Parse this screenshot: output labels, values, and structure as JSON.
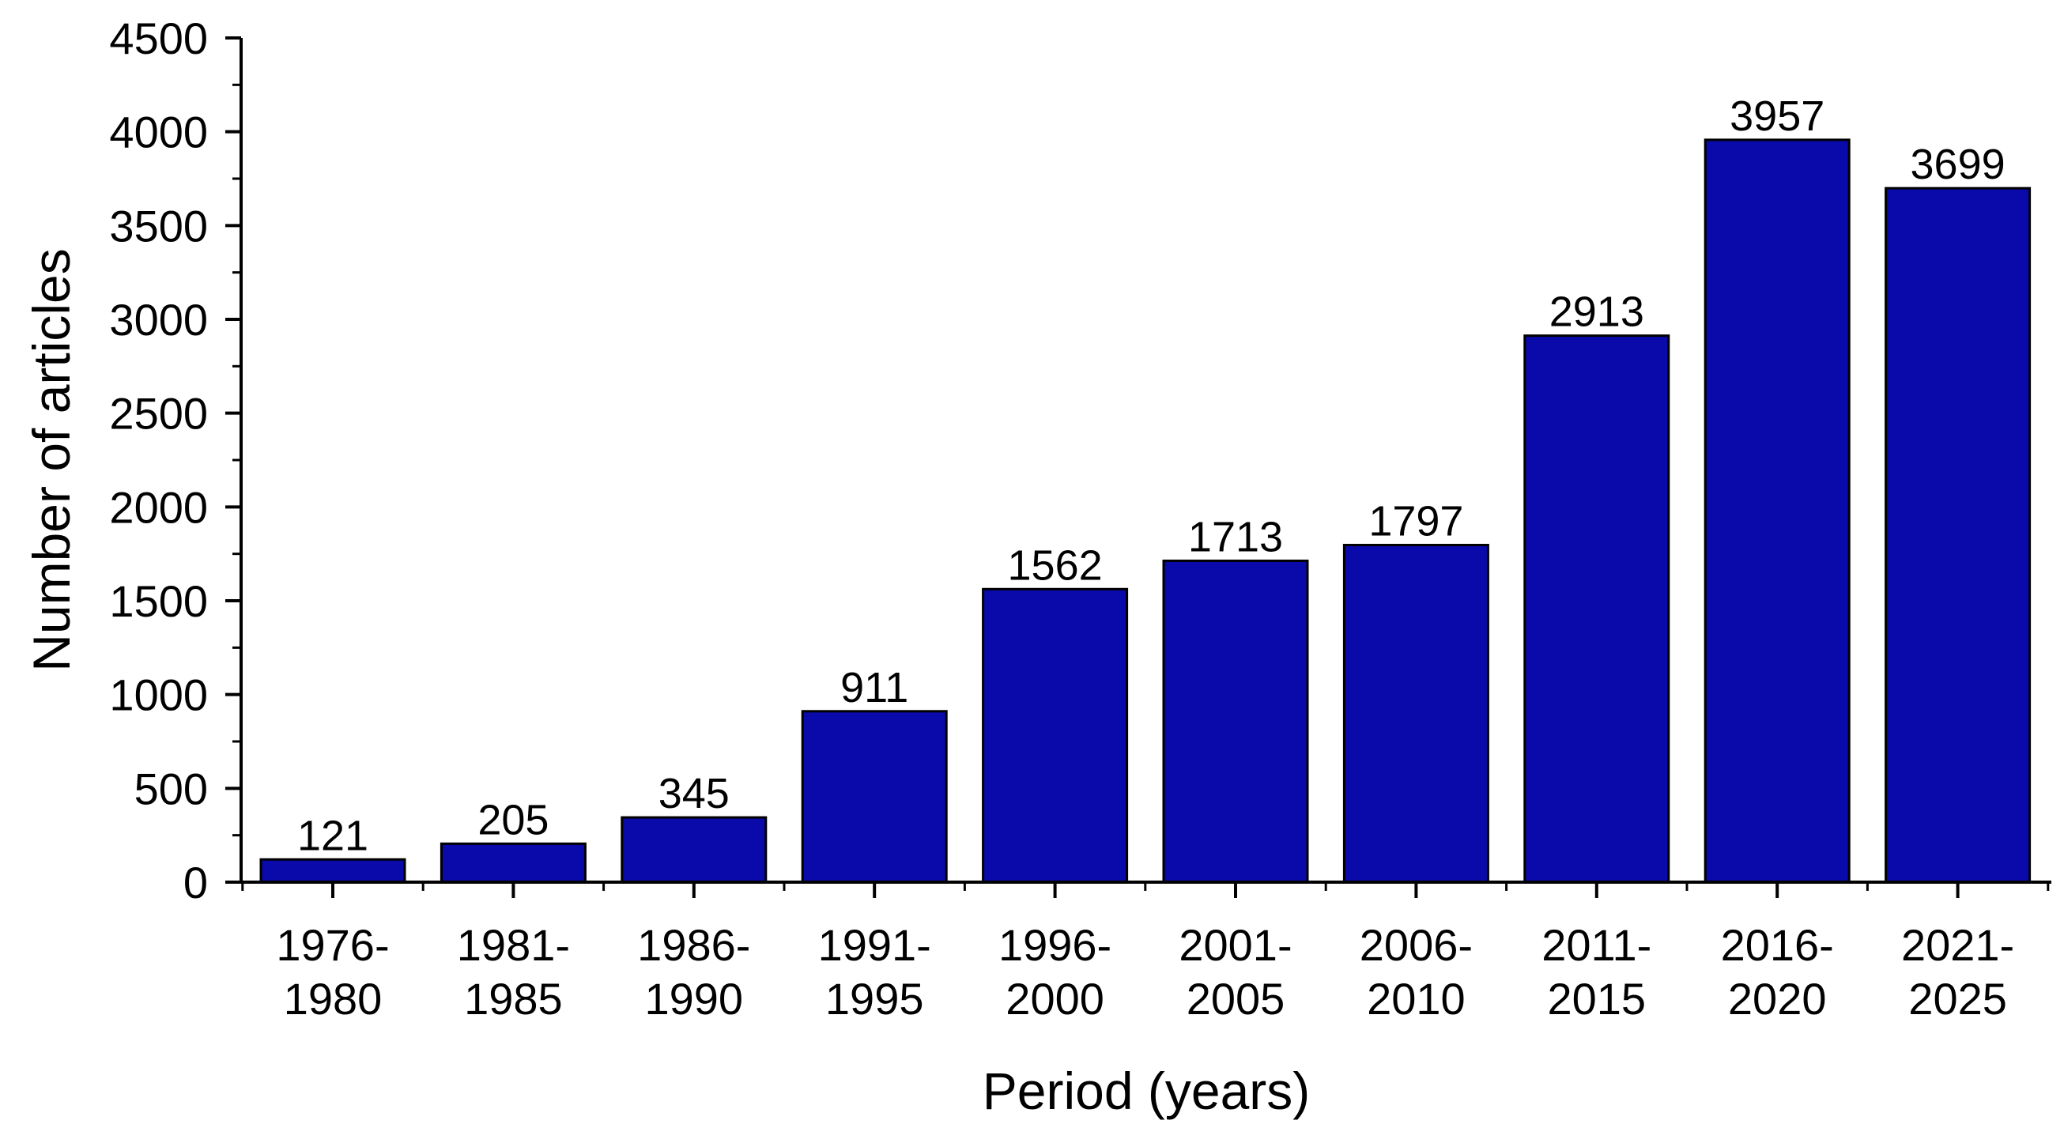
{
  "chart_data": {
    "type": "bar",
    "title": "",
    "xlabel": "Period (years)",
    "ylabel": "Number of articles",
    "categories": [
      [
        "1976-",
        "1980"
      ],
      [
        "1981-",
        "1985"
      ],
      [
        "1986-",
        "1990"
      ],
      [
        "1991-",
        "1995"
      ],
      [
        "1996-",
        "2000"
      ],
      [
        "2001-",
        "2005"
      ],
      [
        "2006-",
        "2010"
      ],
      [
        "2011-",
        "2015"
      ],
      [
        "2016-",
        "2020"
      ],
      [
        "2021-",
        "2025"
      ]
    ],
    "values": [
      121,
      205,
      345,
      911,
      1562,
      1713,
      1797,
      2913,
      3957,
      3699
    ],
    "data_labels": [
      "121",
      "205",
      "345",
      "911",
      "1562",
      "1713",
      "1797",
      "2913",
      "3957",
      "3699"
    ],
    "ylim": [
      0,
      4500
    ],
    "yticks": [
      0,
      500,
      1000,
      1500,
      2000,
      2500,
      3000,
      3500,
      4000,
      4500
    ],
    "ytick_labels": [
      "0",
      "500",
      "1000",
      "1500",
      "2000",
      "2500",
      "3000",
      "3500",
      "4000",
      "4500"
    ],
    "grid": false,
    "legend": "none",
    "bar_color": "#0a0aaa",
    "bar_edge_color": "#000000"
  }
}
